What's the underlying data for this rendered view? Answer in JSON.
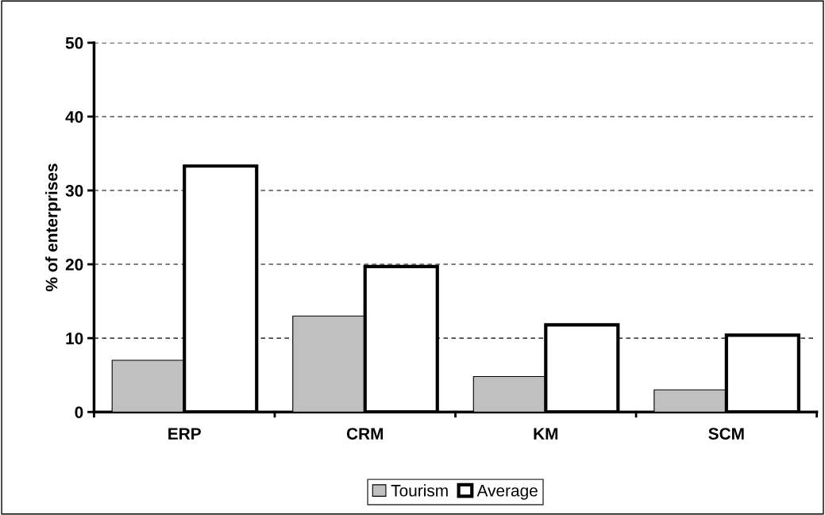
{
  "chart_data": {
    "type": "bar",
    "ylabel": "% of enterprises",
    "categories": [
      "ERP",
      "CRM",
      "KM",
      "SCM"
    ],
    "series": [
      {
        "name": "Tourism",
        "color": "#c0c0c0",
        "values": [
          7.0,
          13.0,
          4.8,
          3.0
        ]
      },
      {
        "name": "Average",
        "color": "#ffffff",
        "values": [
          33.3,
          19.7,
          11.8,
          10.4
        ]
      }
    ],
    "ylim": [
      0,
      50
    ],
    "yticks": [
      0,
      10,
      20,
      30,
      40,
      50
    ],
    "grid": "y",
    "line_style": "dashed",
    "legend": "bottom"
  }
}
